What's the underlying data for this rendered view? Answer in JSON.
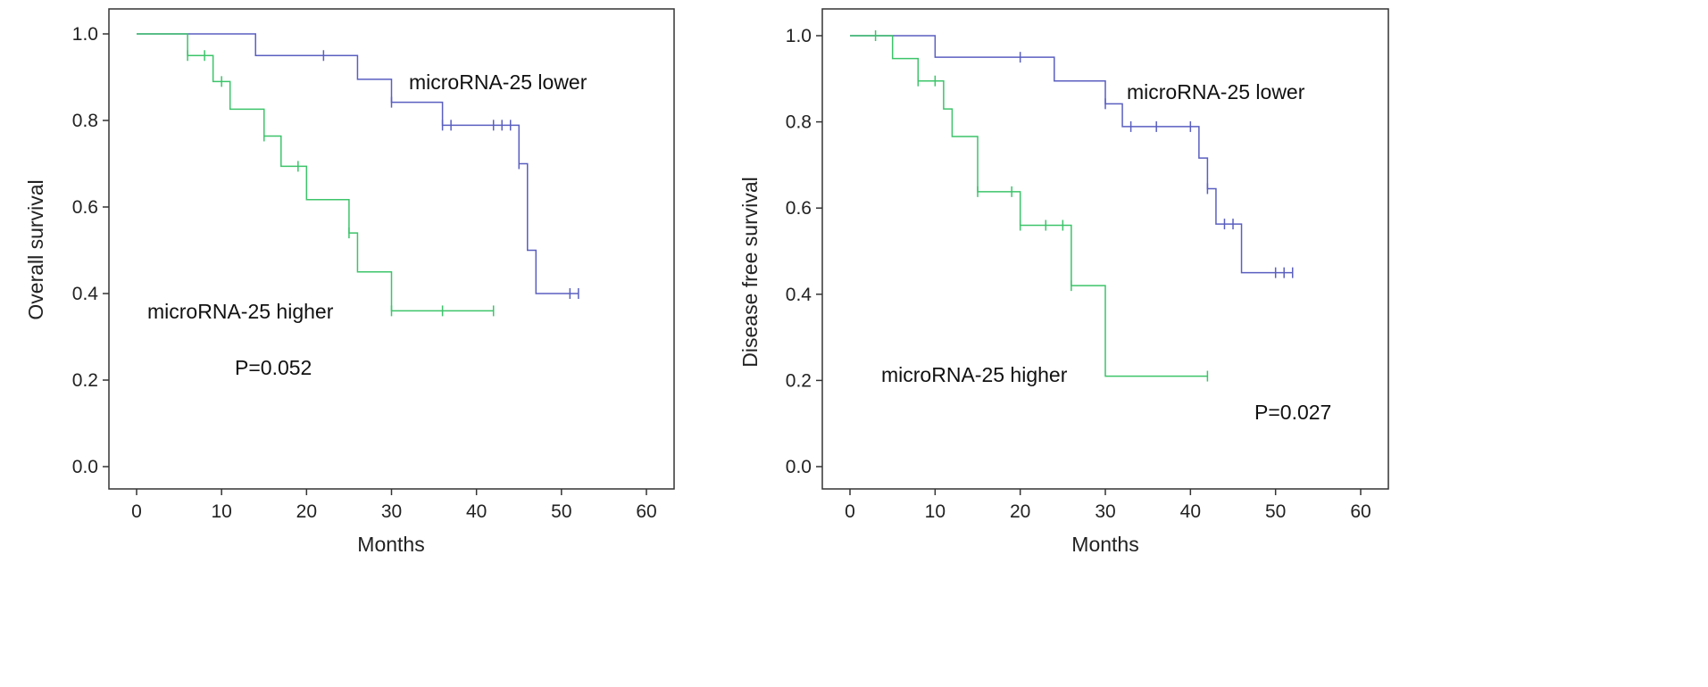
{
  "chart_data": [
    {
      "type": "line",
      "subtype": "kaplan-meier",
      "xlabel": "Months",
      "ylabel": "Overall survival",
      "xlim": [
        0,
        60
      ],
      "ylim": [
        0,
        1
      ],
      "xticks": [
        "0",
        "10",
        "20",
        "30",
        "40",
        "50",
        "60"
      ],
      "yticks": [
        "0.0",
        "0.2",
        "0.4",
        "0.6",
        "0.8",
        "1.0"
      ],
      "p_value": "P=0.052",
      "series": [
        {
          "name": "microRNA-25 lower",
          "color": "#5a5fc0",
          "steps": [
            [
              0,
              1.0
            ],
            [
              14,
              0.95
            ],
            [
              26,
              0.895
            ],
            [
              30,
              0.842
            ],
            [
              36,
              0.789
            ],
            [
              45,
              0.7
            ],
            [
              46,
              0.5
            ],
            [
              47,
              0.4
            ],
            [
              52,
              0.4
            ]
          ],
          "censored": [
            22,
            30,
            36,
            37,
            42,
            43,
            44,
            45,
            51,
            52
          ]
        },
        {
          "name": "microRNA-25 higher",
          "color": "#3cc46a",
          "steps": [
            [
              0,
              1.0
            ],
            [
              6,
              0.95
            ],
            [
              9,
              0.89
            ],
            [
              11,
              0.826
            ],
            [
              15,
              0.764
            ],
            [
              17,
              0.694
            ],
            [
              20,
              0.617
            ],
            [
              25,
              0.54
            ],
            [
              26,
              0.45
            ],
            [
              30,
              0.36
            ],
            [
              42,
              0.36
            ]
          ],
          "censored": [
            6,
            8,
            10,
            15,
            19,
            25,
            30,
            36,
            42
          ]
        }
      ]
    },
    {
      "type": "line",
      "subtype": "kaplan-meier",
      "xlabel": "Months",
      "ylabel": "Disease free survival",
      "xlim": [
        0,
        60
      ],
      "ylim": [
        0,
        1
      ],
      "xticks": [
        "0",
        "10",
        "20",
        "30",
        "40",
        "50",
        "60"
      ],
      "yticks": [
        "0.0",
        "0.2",
        "0.4",
        "0.6",
        "0.8",
        "1.0"
      ],
      "p_value": "P=0.027",
      "series": [
        {
          "name": "microRNA-25 lower",
          "color": "#5a5fc0",
          "steps": [
            [
              0,
              1.0
            ],
            [
              10,
              0.95
            ],
            [
              24,
              0.895
            ],
            [
              30,
              0.842
            ],
            [
              32,
              0.789
            ],
            [
              41,
              0.716
            ],
            [
              42,
              0.645
            ],
            [
              43,
              0.563
            ],
            [
              46,
              0.45
            ],
            [
              52,
              0.45
            ]
          ],
          "censored": [
            20,
            30,
            33,
            36,
            40,
            42,
            44,
            45,
            50,
            51,
            52
          ]
        },
        {
          "name": "microRNA-25 higher",
          "color": "#3cc46a",
          "steps": [
            [
              0,
              1.0
            ],
            [
              5,
              0.947
            ],
            [
              8,
              0.895
            ],
            [
              11,
              0.83
            ],
            [
              12,
              0.766
            ],
            [
              15,
              0.638
            ],
            [
              20,
              0.56
            ],
            [
              26,
              0.42
            ],
            [
              30,
              0.21
            ],
            [
              42,
              0.21
            ]
          ],
          "censored": [
            3,
            8,
            10,
            15,
            19,
            20,
            23,
            25,
            26,
            42
          ]
        }
      ]
    }
  ]
}
